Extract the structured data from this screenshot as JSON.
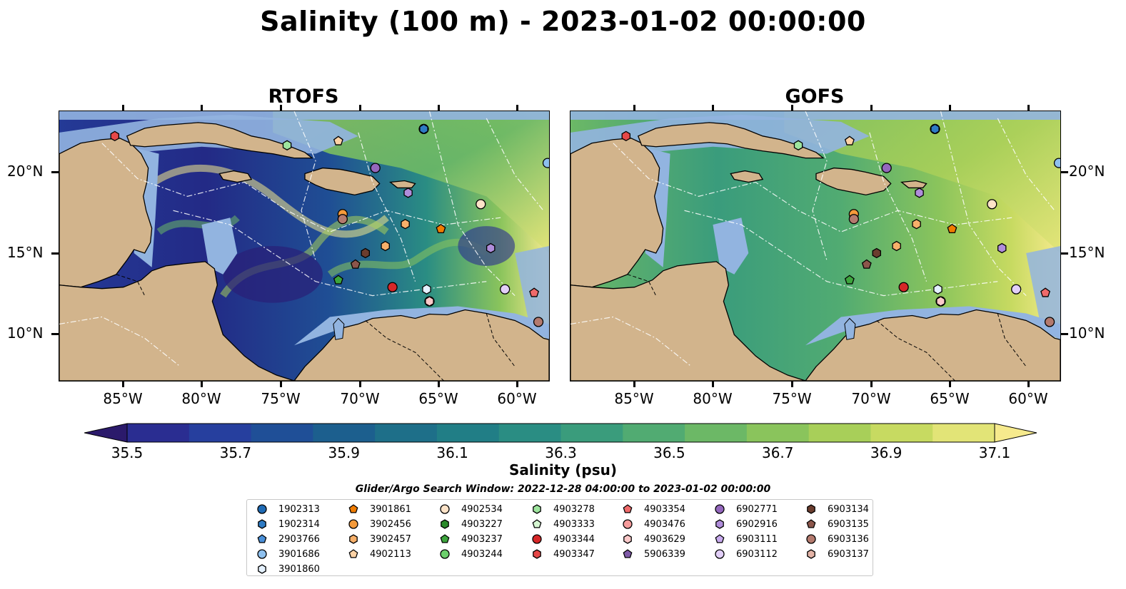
{
  "title": "Salinity (100 m) - 2023-01-02 00:00:00",
  "panels": [
    {
      "title": "RTOFS"
    },
    {
      "title": "GOFS"
    }
  ],
  "lon_labels": [
    "85°W",
    "80°W",
    "75°W",
    "70°W",
    "65°W",
    "60°W"
  ],
  "lat_labels": [
    "20°N",
    "15°N",
    "10°N"
  ],
  "colorbar": {
    "label": "Salinity (psu)",
    "tick_labels": [
      "35.5",
      "35.7",
      "35.9",
      "36.1",
      "36.3",
      "36.5",
      "36.7",
      "36.9",
      "37.1"
    ],
    "colors": [
      "#2b1a6b",
      "#2a2d91",
      "#263f9e",
      "#1f4f97",
      "#1c5f8e",
      "#1e6f89",
      "#217e86",
      "#2a8d83",
      "#3a9c7c",
      "#51ab72",
      "#6cb866",
      "#8ac45c",
      "#a8cf59",
      "#c7da61",
      "#e2e477",
      "#f6ea8d"
    ]
  },
  "legend": {
    "title": "Glider/Argo Search Window: 2022-12-28 04:00:00 to 2023-01-02 00:00:00",
    "items": [
      {
        "label": "1902313",
        "color": "#1f6bb5",
        "marker": "circle"
      },
      {
        "label": "1902314",
        "color": "#2e7bc4",
        "marker": "hexagon"
      },
      {
        "label": "2903766",
        "color": "#4a90d9",
        "marker": "pentagon"
      },
      {
        "label": "3901686",
        "color": "#8ec0ee",
        "marker": "circle"
      },
      {
        "label": "3901860",
        "color": "#e4f1ff",
        "marker": "hexagon"
      },
      {
        "label": "3901861",
        "color": "#f07c00",
        "marker": "pentagon"
      },
      {
        "label": "3902456",
        "color": "#f59a3a",
        "marker": "circle"
      },
      {
        "label": "3902457",
        "color": "#f7b06a",
        "marker": "hexagon"
      },
      {
        "label": "4902113",
        "color": "#fcd2a5",
        "marker": "pentagon"
      },
      {
        "label": "4902534",
        "color": "#fde3c8",
        "marker": "circle"
      },
      {
        "label": "4903227",
        "color": "#2a8a2a",
        "marker": "hexagon"
      },
      {
        "label": "4903237",
        "color": "#3da53d",
        "marker": "pentagon"
      },
      {
        "label": "4903244",
        "color": "#6ccf6c",
        "marker": "circle"
      },
      {
        "label": "4903278",
        "color": "#9ee59e",
        "marker": "hexagon"
      },
      {
        "label": "4903333",
        "color": "#d6f7d2",
        "marker": "pentagon"
      },
      {
        "label": "4903344",
        "color": "#d62728",
        "marker": "circle"
      },
      {
        "label": "4903347",
        "color": "#e54848",
        "marker": "hexagon"
      },
      {
        "label": "4903354",
        "color": "#ef6a6a",
        "marker": "pentagon"
      },
      {
        "label": "4903476",
        "color": "#f59b9b",
        "marker": "circle"
      },
      {
        "label": "4903629",
        "color": "#fbc9c9",
        "marker": "hexagon"
      },
      {
        "label": "5906339",
        "color": "#7f5aa8",
        "marker": "pentagon"
      },
      {
        "label": "6902771",
        "color": "#9467bd",
        "marker": "circle"
      },
      {
        "label": "6902916",
        "color": "#b08ddb",
        "marker": "hexagon"
      },
      {
        "label": "6903111",
        "color": "#c8aaee",
        "marker": "pentagon"
      },
      {
        "label": "6903112",
        "color": "#e2cff8",
        "marker": "circle"
      },
      {
        "label": "6903134",
        "color": "#6b3d2e",
        "marker": "hexagon"
      },
      {
        "label": "6903135",
        "color": "#8c564b",
        "marker": "pentagon"
      },
      {
        "label": "6903136",
        "color": "#b47a6e",
        "marker": "circle"
      },
      {
        "label": "6903137",
        "color": "#e3b3a6",
        "marker": "hexagon"
      }
    ]
  },
  "colors": {
    "land": "#d2b48c",
    "shallow_water": "#92b4e0",
    "deep_pacific": "#261a5e"
  }
}
